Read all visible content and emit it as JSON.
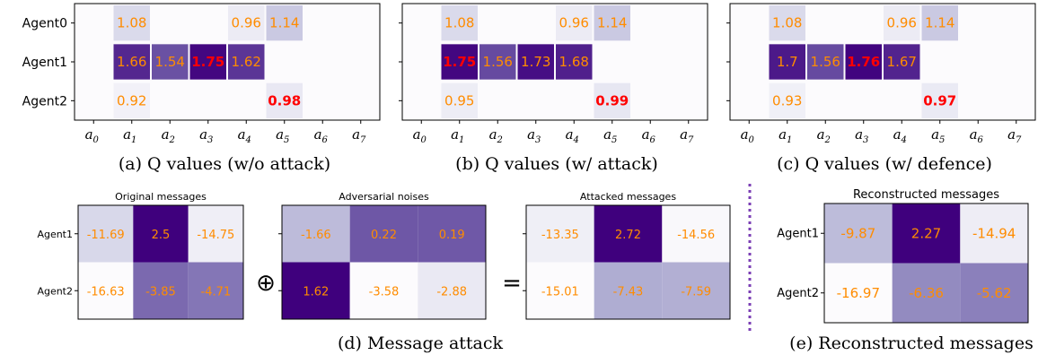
{
  "colors": {
    "value_text": "#ff8c00",
    "highlight_text": "#ff0000",
    "divider": "#7b3fb5",
    "background_cell": "#fcfbfd"
  },
  "q_panels": {
    "agents": [
      "Agent0",
      "Agent1",
      "Agent2"
    ],
    "actions": [
      "a0",
      "a1",
      "a2",
      "a3",
      "a4",
      "a5",
      "a6",
      "a7"
    ],
    "captions": [
      "(a) Q values (w/o attack)",
      "(b) Q values (w/ attack)",
      "(c) Q values (w/ defence)"
    ]
  },
  "heatmaps": {
    "titles": [
      "Original messages",
      "Adversarial noises",
      "Attacked messages",
      "Reconstructed messages"
    ],
    "row_labels": [
      "Agent1",
      "Agent2"
    ],
    "operators": [
      "⊕",
      "="
    ],
    "captions": [
      "(d) Message attack",
      "(e) Reconstructed messages"
    ]
  },
  "chart_data": [
    {
      "type": "heatmap",
      "title": "",
      "caption": "(a) Q values (w/o attack)",
      "rows": [
        "Agent0",
        "Agent1",
        "Agent2"
      ],
      "columns": [
        "a0",
        "a1",
        "a2",
        "a3",
        "a4",
        "a5",
        "a6",
        "a7"
      ],
      "cells": [
        {
          "row": 0,
          "col": 1,
          "value": 1.08
        },
        {
          "row": 0,
          "col": 4,
          "value": 0.96
        },
        {
          "row": 0,
          "col": 5,
          "value": 1.14
        },
        {
          "row": 1,
          "col": 1,
          "value": 1.66
        },
        {
          "row": 1,
          "col": 2,
          "value": 1.54
        },
        {
          "row": 1,
          "col": 3,
          "value": 1.75,
          "highlight": true
        },
        {
          "row": 1,
          "col": 4,
          "value": 1.62
        },
        {
          "row": 2,
          "col": 1,
          "value": 0.92
        },
        {
          "row": 2,
          "col": 5,
          "value": 0.98,
          "highlight": true
        }
      ]
    },
    {
      "type": "heatmap",
      "title": "",
      "caption": "(b) Q values (w/ attack)",
      "rows": [
        "Agent0",
        "Agent1",
        "Agent2"
      ],
      "columns": [
        "a0",
        "a1",
        "a2",
        "a3",
        "a4",
        "a5",
        "a6",
        "a7"
      ],
      "cells": [
        {
          "row": 0,
          "col": 1,
          "value": 1.08
        },
        {
          "row": 0,
          "col": 4,
          "value": 0.96
        },
        {
          "row": 0,
          "col": 5,
          "value": 1.14
        },
        {
          "row": 1,
          "col": 1,
          "value": 1.75,
          "highlight": true
        },
        {
          "row": 1,
          "col": 2,
          "value": 1.56
        },
        {
          "row": 1,
          "col": 3,
          "value": 1.73
        },
        {
          "row": 1,
          "col": 4,
          "value": 1.68
        },
        {
          "row": 2,
          "col": 1,
          "value": 0.95
        },
        {
          "row": 2,
          "col": 5,
          "value": 0.99,
          "highlight": true
        }
      ]
    },
    {
      "type": "heatmap",
      "title": "",
      "caption": "(c) Q values (w/ defence)",
      "rows": [
        "Agent0",
        "Agent1",
        "Agent2"
      ],
      "columns": [
        "a0",
        "a1",
        "a2",
        "a3",
        "a4",
        "a5",
        "a6",
        "a7"
      ],
      "cells": [
        {
          "row": 0,
          "col": 1,
          "value": 1.08
        },
        {
          "row": 0,
          "col": 4,
          "value": 0.96
        },
        {
          "row": 0,
          "col": 5,
          "value": 1.14
        },
        {
          "row": 1,
          "col": 1,
          "value": 1.7
        },
        {
          "row": 1,
          "col": 2,
          "value": 1.56
        },
        {
          "row": 1,
          "col": 3,
          "value": 1.76,
          "highlight": true
        },
        {
          "row": 1,
          "col": 4,
          "value": 1.67
        },
        {
          "row": 2,
          "col": 1,
          "value": 0.93
        },
        {
          "row": 2,
          "col": 5,
          "value": 0.97,
          "highlight": true
        }
      ]
    },
    {
      "type": "heatmap",
      "title": "Original messages",
      "rows": [
        "Agent1",
        "Agent2"
      ],
      "values": [
        [
          -11.69,
          2.5,
          -14.75
        ],
        [
          -16.63,
          -3.85,
          -4.71
        ]
      ]
    },
    {
      "type": "heatmap",
      "title": "Adversarial noises",
      "rows": [
        "Agent1",
        "Agent2"
      ],
      "values": [
        [
          -1.66,
          0.22,
          0.19
        ],
        [
          1.62,
          -3.58,
          -2.88
        ]
      ]
    },
    {
      "type": "heatmap",
      "title": "Attacked messages",
      "rows": [
        "Agent1",
        "Agent2"
      ],
      "values": [
        [
          -13.35,
          2.72,
          -14.56
        ],
        [
          -15.01,
          -7.43,
          -7.59
        ]
      ]
    },
    {
      "type": "heatmap",
      "title": "Reconstructed messages",
      "rows": [
        "Agent1",
        "Agent2"
      ],
      "values": [
        [
          -9.87,
          2.27,
          -14.94
        ],
        [
          -16.97,
          -6.36,
          -5.62
        ]
      ]
    }
  ]
}
